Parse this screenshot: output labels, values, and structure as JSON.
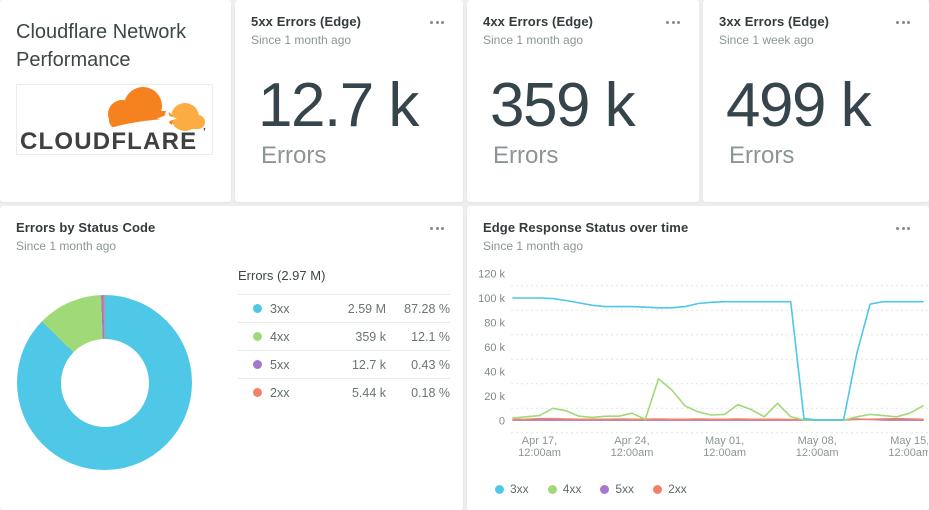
{
  "page": {
    "background": "#edefef"
  },
  "title_card": {
    "title": "Cloudflare Network Performance",
    "logo_wordmark": "CLOUDFLARE",
    "logo_mark": "’",
    "logo_orange": "#F6821F",
    "logo_light_orange": "#FBAD41",
    "logo_text_color": "#404041"
  },
  "stat_cards": [
    {
      "id": "5xx",
      "title": "5xx Errors (Edge)",
      "subtitle": "Since 1 month ago",
      "value": "12.7 k",
      "unit": "Errors"
    },
    {
      "id": "4xx",
      "title": "4xx Errors (Edge)",
      "subtitle": "Since 1 month ago",
      "value": "359 k",
      "unit": "Errors"
    },
    {
      "id": "3xx",
      "title": "3xx Errors (Edge)",
      "subtitle": "Since 1 week ago",
      "value": "499 k",
      "unit": "Errors"
    }
  ],
  "pie_card": {
    "title": "Errors by Status Code",
    "subtitle": "Since 1 month ago"
  },
  "line_card": {
    "title": "Edge Response Status over time",
    "subtitle": "Since 1 month ago"
  },
  "chart_data": [
    {
      "type": "pie",
      "style": "donut",
      "title": "Errors by Status Code",
      "legend_header": "Errors (2.97 M)",
      "legend_position": "right-table",
      "slices": [
        {
          "label": "3xx",
          "value_label": "2.59 M",
          "pct": 87.28,
          "pct_label": "87.28 %",
          "color": "#4fc7e7"
        },
        {
          "label": "4xx",
          "value_label": "359 k",
          "pct": 12.1,
          "pct_label": "12.1 %",
          "color": "#a0da78"
        },
        {
          "label": "5xx",
          "value_label": "12.7 k",
          "pct": 0.43,
          "pct_label": "0.43 %",
          "color": "#a876cd"
        },
        {
          "label": "2xx",
          "value_label": "5.44 k",
          "pct": 0.18,
          "pct_label": "0.18 %",
          "color": "#f3806a"
        }
      ]
    },
    {
      "type": "line",
      "title": "Edge Response Status over time",
      "grid": "dashed-horizontal",
      "legend_position": "bottom",
      "ylim_k": [
        0,
        120
      ],
      "yticks": [
        {
          "v": 120,
          "label": "120 k"
        },
        {
          "v": 100,
          "label": "100 k"
        },
        {
          "v": 80,
          "label": "80 k"
        },
        {
          "v": 60,
          "label": "60 k"
        },
        {
          "v": 40,
          "label": "40 k"
        },
        {
          "v": 20,
          "label": "20 k"
        },
        {
          "v": 0,
          "label": "0"
        }
      ],
      "n_points": 32,
      "x_ticks": [
        {
          "i": 2,
          "l1": "Apr 17,",
          "l2": "12:00am"
        },
        {
          "i": 9,
          "l1": "Apr 24,",
          "l2": "12:00am"
        },
        {
          "i": 16,
          "l1": "May 01,",
          "l2": "12:00am"
        },
        {
          "i": 23,
          "l1": "May 08,",
          "l2": "12:00am"
        },
        {
          "i": 30,
          "l1": "May 15,",
          "l2": "12:00am"
        }
      ],
      "series": [
        {
          "name": "3xx",
          "color": "#4fc7e7",
          "values_k": [
            100,
            100,
            100,
            99.5,
            98,
            96,
            94,
            93,
            93,
            93,
            92.5,
            92,
            92,
            93,
            95.5,
            96.5,
            97,
            97,
            97,
            97,
            97,
            97,
            1.5,
            0.5,
            0.5,
            0.5,
            55,
            95,
            97,
            97,
            97,
            97
          ]
        },
        {
          "name": "4xx",
          "color": "#a0da78",
          "values_k": [
            2,
            3,
            4,
            10,
            8,
            3.5,
            2.5,
            3.5,
            3.5,
            6,
            1,
            34,
            25,
            12,
            7,
            4.5,
            5,
            13,
            9,
            3,
            14,
            3,
            0.5,
            0.3,
            0.3,
            0.3,
            3,
            5,
            4,
            3,
            6,
            12
          ]
        },
        {
          "name": "5xx",
          "color": "#a876cd",
          "values_k": [
            0.3,
            0.3,
            0.3,
            0.3,
            0.3,
            0.3,
            0.3,
            0.3,
            0.3,
            0.3,
            0.3,
            0.3,
            0.3,
            0.3,
            0.3,
            0.3,
            0.3,
            0.3,
            0.3,
            0.3,
            0.3,
            0.3,
            0.3,
            0.3,
            0.3,
            0.4,
            1.2,
            0.8,
            0.4,
            0.3,
            0.3,
            0.3
          ]
        },
        {
          "name": "2xx",
          "color": "#f3806a",
          "values_k": [
            0.8,
            1,
            1.5,
            1.5,
            1.2,
            1,
            1,
            1,
            1.2,
            1,
            1,
            1.2,
            1,
            1,
            1.2,
            1,
            1,
            1.2,
            1,
            1,
            1,
            0.8,
            0.5,
            0.5,
            0.5,
            0.5,
            0.8,
            1,
            1.2,
            1.5,
            1.2,
            1
          ]
        }
      ]
    }
  ]
}
